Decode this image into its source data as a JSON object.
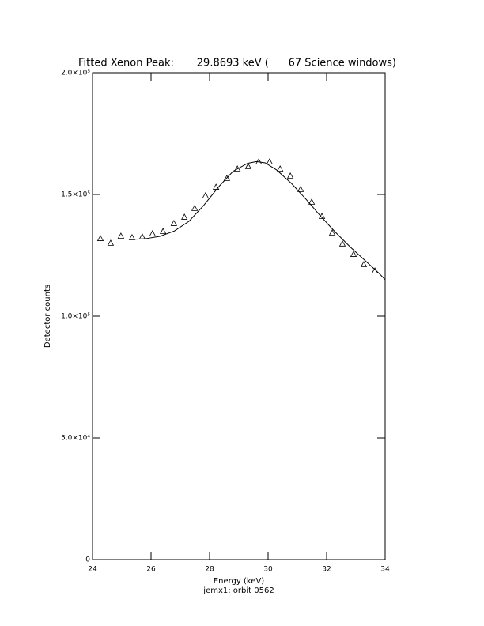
{
  "chart_data": {
    "type": "scatter",
    "title": "Fitted Xenon Peak:       29.8693 keV (      67 Science windows)",
    "xlabel": "Energy (keV)",
    "subxlabel": "jemx1: orbit 0562",
    "ylabel": "Detector counts",
    "xlim": [
      24,
      34
    ],
    "xticks": [
      24,
      26,
      28,
      30,
      32,
      34
    ],
    "ylim": [
      0,
      200000
    ],
    "yticks": [
      0,
      {
        "value": 50000,
        "label": "5.0×10⁴"
      },
      {
        "value": 100000,
        "label": "1.0×10⁵"
      },
      {
        "value": 150000,
        "label": "1.5×10⁵"
      },
      {
        "value": 200000,
        "label": "2.0×10⁵"
      }
    ],
    "color": "#000000",
    "series": [
      {
        "marker": "triangle",
        "x": [
          24.27,
          24.62,
          24.97,
          25.35,
          25.7,
          26.05,
          26.41,
          26.78,
          27.14,
          27.49,
          27.86,
          28.22,
          28.59,
          28.95,
          29.32,
          29.68,
          30.05,
          30.41,
          30.76,
          31.11,
          31.49,
          31.84,
          32.19,
          32.54,
          32.92,
          33.27,
          33.65
        ],
        "values": [
          131800,
          129900,
          132800,
          132200,
          132500,
          133800,
          134700,
          138000,
          140600,
          144200,
          149400,
          152900,
          156500,
          160400,
          161400,
          163300,
          163300,
          160400,
          157500,
          152000,
          146800,
          140900,
          134100,
          129600,
          125300,
          121100,
          118500
        ]
      },
      {
        "marker": "line",
        "x": [
          25.3,
          25.8,
          26.3,
          26.8,
          27.3,
          27.8,
          28.3,
          28.8,
          29.3,
          29.6,
          29.9,
          30.3,
          30.8,
          31.3,
          31.8,
          32.3,
          32.8,
          33.3,
          33.8,
          34
        ],
        "values": [
          131500,
          131800,
          132800,
          135000,
          139000,
          145500,
          153000,
          159500,
          162800,
          163500,
          163000,
          160000,
          154500,
          148000,
          141000,
          134500,
          128500,
          123000,
          117500,
          115000
        ]
      }
    ]
  }
}
